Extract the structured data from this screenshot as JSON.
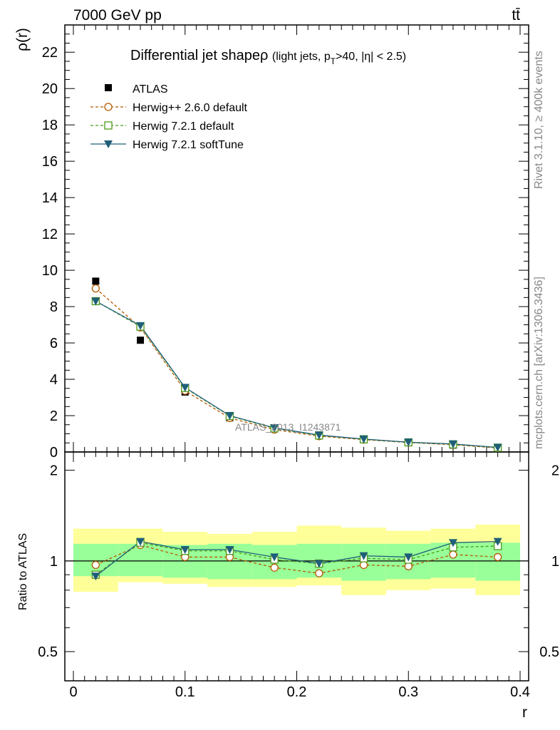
{
  "header": {
    "left": "7000 GeV pp",
    "right": "tt̄"
  },
  "side_labels": {
    "rivet": "Rivet 3.1.10, ≥ 400k events",
    "mcplots": "mcplots.cern.ch [arXiv:1306.3436]"
  },
  "chart_data": {
    "type": "line",
    "title_main": "Differential jet shapeρ",
    "title_sub": "(light jets, p",
    "title_sub_T": "T",
    "title_sub_rest": ">40, |η| < 2.5)",
    "watermark": "ATLAS_2013_I1243871",
    "xlabel": "r",
    "ylabel_main": "ρ(r)",
    "ylabel_ratio": "Ratio to ATLAS",
    "xlim": [
      0,
      0.4
    ],
    "ylim_main": [
      0,
      23.5
    ],
    "ylim_ratio": [
      0.4,
      2.3
    ],
    "x_ticks": [
      "0",
      "0.1",
      "0.2",
      "0.3",
      "0.4"
    ],
    "y_ticks_main": [
      "0",
      "2",
      "4",
      "6",
      "8",
      "10",
      "12",
      "14",
      "16",
      "18",
      "20",
      "22"
    ],
    "y_ticks_ratio": [
      "0.5",
      "1",
      "2"
    ],
    "x": [
      0.02,
      0.06,
      0.1,
      0.14,
      0.18,
      0.22,
      0.26,
      0.3,
      0.34,
      0.38
    ],
    "bin_edges": [
      0.0,
      0.04,
      0.08,
      0.12,
      0.16,
      0.2,
      0.24,
      0.28,
      0.32,
      0.36,
      0.4
    ],
    "data": {
      "name": "ATLAS",
      "values": [
        9.4,
        6.15,
        3.3,
        1.88,
        1.28,
        0.93,
        0.68,
        0.52,
        0.38,
        0.22
      ]
    },
    "series": [
      {
        "name": "Herwig++ 2.6.0 default",
        "color": "#b35900",
        "dash": true,
        "marker": "circle",
        "values": [
          9.0,
          6.85,
          3.37,
          1.87,
          1.23,
          0.87,
          0.68,
          0.52,
          0.4,
          0.22
        ],
        "ratio": [
          0.97,
          1.13,
          1.03,
          1.03,
          0.95,
          0.91,
          0.97,
          0.96,
          1.05,
          1.03
        ]
      },
      {
        "name": "Herwig 7.2.1 default",
        "color": "#4c9a1a",
        "dash": true,
        "marker": "square",
        "values": [
          8.3,
          6.9,
          3.52,
          1.98,
          1.3,
          0.91,
          0.7,
          0.53,
          0.42,
          0.24
        ],
        "ratio": [
          0.9,
          1.15,
          1.08,
          1.08,
          1.01,
          0.98,
          1.02,
          1.01,
          1.11,
          1.12
        ]
      },
      {
        "name": "Herwig 7.2.1 softTune",
        "color": "#1f5f78",
        "dash": false,
        "marker": "triangle",
        "values": [
          8.3,
          6.95,
          3.55,
          2.0,
          1.33,
          0.93,
          0.71,
          0.54,
          0.44,
          0.25
        ],
        "ratio": [
          0.89,
          1.16,
          1.09,
          1.09,
          1.03,
          0.98,
          1.04,
          1.03,
          1.15,
          1.16
        ]
      }
    ],
    "band_inner": [
      [
        0.89,
        1.14
      ],
      [
        0.89,
        1.14
      ],
      [
        0.88,
        1.13
      ],
      [
        0.87,
        1.14
      ],
      [
        0.87,
        1.13
      ],
      [
        0.88,
        1.14
      ],
      [
        0.86,
        1.14
      ],
      [
        0.87,
        1.14
      ],
      [
        0.88,
        1.15
      ],
      [
        0.86,
        1.15
      ]
    ],
    "band_outer": [
      [
        0.79,
        1.28
      ],
      [
        0.85,
        1.28
      ],
      [
        0.84,
        1.25
      ],
      [
        0.82,
        1.23
      ],
      [
        0.82,
        1.25
      ],
      [
        0.83,
        1.31
      ],
      [
        0.77,
        1.29
      ],
      [
        0.8,
        1.26
      ],
      [
        0.81,
        1.28
      ],
      [
        0.77,
        1.32
      ]
    ],
    "legend_position": "top-left"
  }
}
